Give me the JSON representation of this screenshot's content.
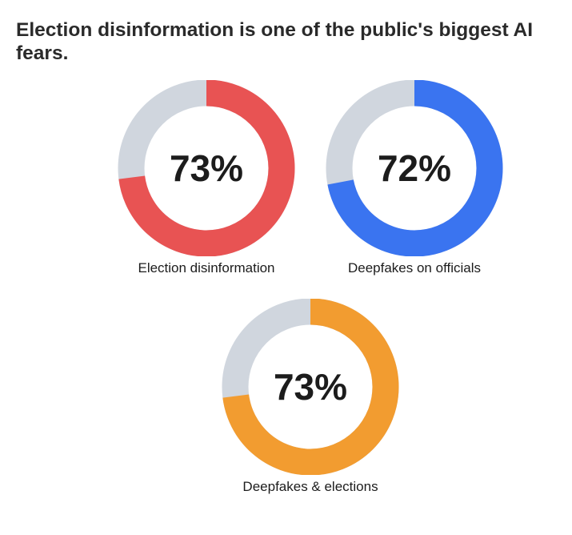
{
  "title": "Election disinformation is one of the public's biggest AI fears.",
  "colors": {
    "track": "#d0d6de",
    "text": "#1c1c1c"
  },
  "chart_data": [
    {
      "type": "pie",
      "label": "Election disinformation",
      "value": 73,
      "display": "73%",
      "color": "#e85353"
    },
    {
      "type": "pie",
      "label": "Deepfakes on officials",
      "value": 72,
      "display": "72%",
      "color": "#3a74f0"
    },
    {
      "type": "pie",
      "label": "Deepfakes & elections",
      "value": 73,
      "display": "73%",
      "color": "#f29c30"
    }
  ]
}
